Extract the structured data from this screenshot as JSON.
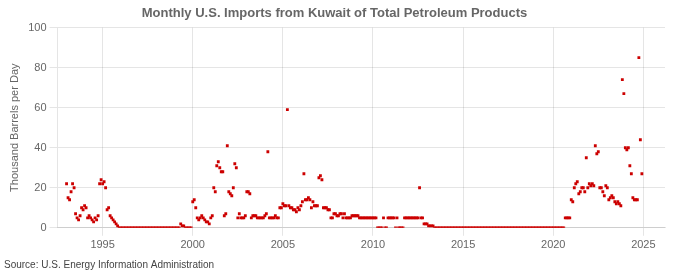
{
  "chart_data": {
    "type": "scatter",
    "title": "Monthly U.S. Imports from Kuwait of Total Petroleum Products",
    "ylabel": "Thousand Barrels per Day",
    "annotation": "Source: U.S. Energy Information Administration",
    "color": "#CC0000",
    "marker": "square",
    "grid": true,
    "xlim": [
      1992.5,
      2026.2
    ],
    "xticks": [
      1995,
      2000,
      2005,
      2010,
      2015,
      2020,
      2025
    ],
    "ylim": [
      0,
      100
    ],
    "yticks": [
      0,
      20,
      40,
      60,
      80,
      100
    ],
    "x": [
      1993.0,
      1993.083,
      1993.167,
      1993.25,
      1993.333,
      1993.417,
      1993.5,
      1993.583,
      1993.667,
      1993.75,
      1993.833,
      1993.917,
      1994.0,
      1994.083,
      1994.167,
      1994.25,
      1994.333,
      1994.417,
      1994.5,
      1994.583,
      1994.667,
      1994.75,
      1994.833,
      1994.917,
      1995.0,
      1995.083,
      1995.167,
      1995.25,
      1995.333,
      1995.417,
      1995.5,
      1995.583,
      1995.667,
      1995.75,
      1995.833,
      1995.917,
      1996.0,
      1996.083,
      1996.167,
      1996.25,
      1996.333,
      1996.417,
      1996.5,
      1996.583,
      1996.667,
      1996.75,
      1996.833,
      1996.917,
      1997.0,
      1997.083,
      1997.167,
      1997.25,
      1997.333,
      1997.417,
      1997.5,
      1997.583,
      1997.667,
      1997.75,
      1997.833,
      1997.917,
      1998.0,
      1998.083,
      1998.167,
      1998.25,
      1998.333,
      1998.417,
      1998.5,
      1998.583,
      1998.667,
      1998.75,
      1998.833,
      1998.917,
      1999.0,
      1999.083,
      1999.167,
      1999.25,
      1999.333,
      1999.417,
      1999.5,
      1999.583,
      1999.667,
      1999.75,
      1999.833,
      1999.917,
      2000.0,
      2000.083,
      2000.167,
      2000.25,
      2000.333,
      2000.417,
      2000.5,
      2000.583,
      2000.667,
      2000.75,
      2000.833,
      2000.917,
      2001.0,
      2001.083,
      2001.167,
      2001.25,
      2001.333,
      2001.417,
      2001.5,
      2001.583,
      2001.667,
      2001.75,
      2001.833,
      2001.917,
      2002.0,
      2002.083,
      2002.167,
      2002.25,
      2002.333,
      2002.417,
      2002.5,
      2002.583,
      2002.667,
      2002.75,
      2002.833,
      2002.917,
      2003.0,
      2003.083,
      2003.167,
      2003.25,
      2003.333,
      2003.417,
      2003.5,
      2003.583,
      2003.667,
      2003.75,
      2003.833,
      2003.917,
      2004.0,
      2004.083,
      2004.167,
      2004.25,
      2004.333,
      2004.417,
      2004.5,
      2004.583,
      2004.667,
      2004.75,
      2004.833,
      2004.917,
      2005.0,
      2005.083,
      2005.167,
      2005.25,
      2005.333,
      2005.417,
      2005.5,
      2005.583,
      2005.667,
      2005.75,
      2005.833,
      2005.917,
      2006.0,
      2006.083,
      2006.167,
      2006.25,
      2006.333,
      2006.417,
      2006.5,
      2006.583,
      2006.667,
      2006.75,
      2006.833,
      2006.917,
      2007.0,
      2007.083,
      2007.167,
      2007.25,
      2007.333,
      2007.417,
      2007.5,
      2007.583,
      2007.667,
      2007.75,
      2007.833,
      2007.917,
      2008.0,
      2008.083,
      2008.167,
      2008.25,
      2008.333,
      2008.417,
      2008.5,
      2008.583,
      2008.667,
      2008.75,
      2008.833,
      2008.917,
      2009.0,
      2009.083,
      2009.167,
      2009.25,
      2009.333,
      2009.417,
      2009.5,
      2009.583,
      2009.667,
      2009.75,
      2009.833,
      2009.917,
      2010.0,
      2010.083,
      2010.167,
      2010.25,
      2010.333,
      2010.417,
      2010.5,
      2010.583,
      2010.667,
      2010.75,
      2010.833,
      2010.917,
      2011.0,
      2011.083,
      2011.167,
      2011.25,
      2011.333,
      2011.417,
      2011.5,
      2011.583,
      2011.667,
      2011.75,
      2011.833,
      2011.917,
      2012.0,
      2012.083,
      2012.167,
      2012.25,
      2012.333,
      2012.417,
      2012.5,
      2012.583,
      2012.667,
      2012.75,
      2012.833,
      2012.917,
      2013.0,
      2013.083,
      2013.167,
      2013.25,
      2013.333,
      2013.417,
      2013.5,
      2013.583,
      2013.667,
      2013.75,
      2013.833,
      2013.917,
      2014.0,
      2014.083,
      2014.167,
      2014.25,
      2014.333,
      2014.417,
      2014.5,
      2014.583,
      2014.667,
      2014.75,
      2014.833,
      2014.917,
      2015.0,
      2015.083,
      2015.167,
      2015.25,
      2015.333,
      2015.417,
      2015.5,
      2015.583,
      2015.667,
      2015.75,
      2015.833,
      2015.917,
      2016.0,
      2016.083,
      2016.167,
      2016.25,
      2016.333,
      2016.417,
      2016.5,
      2016.583,
      2016.667,
      2016.75,
      2016.833,
      2016.917,
      2017.0,
      2017.083,
      2017.167,
      2017.25,
      2017.333,
      2017.417,
      2017.5,
      2017.583,
      2017.667,
      2017.75,
      2017.833,
      2017.917,
      2018.0,
      2018.083,
      2018.167,
      2018.25,
      2018.333,
      2018.417,
      2018.5,
      2018.583,
      2018.667,
      2018.75,
      2018.833,
      2018.917,
      2019.0,
      2019.083,
      2019.167,
      2019.25,
      2019.333,
      2019.417,
      2019.5,
      2019.583,
      2019.667,
      2019.75,
      2019.833,
      2019.917,
      2020.0,
      2020.083,
      2020.167,
      2020.25,
      2020.333,
      2020.417,
      2020.5,
      2020.583,
      2020.667,
      2020.75,
      2020.833,
      2020.917,
      2021.0,
      2021.083,
      2021.167,
      2021.25,
      2021.333,
      2021.417,
      2021.5,
      2021.583,
      2021.667,
      2021.75,
      2021.833,
      2021.917,
      2022.0,
      2022.083,
      2022.167,
      2022.25,
      2022.333,
      2022.417,
      2022.5,
      2022.583,
      2022.667,
      2022.75,
      2022.833,
      2022.917,
      2023.0,
      2023.083,
      2023.167,
      2023.25,
      2023.333,
      2023.417,
      2023.5,
      2023.583,
      2023.667,
      2023.75,
      2023.833,
      2023.917,
      2024.0,
      2024.083,
      2024.167,
      2024.25,
      2024.333,
      2024.417,
      2024.5,
      2024.583,
      2024.667,
      2024.75,
      2024.833,
      2024.917
    ],
    "values": [
      22,
      15,
      14,
      18,
      22,
      20,
      7,
      5,
      4,
      6,
      10,
      9,
      11,
      10,
      5,
      6,
      5,
      4,
      3,
      5,
      4,
      6,
      22,
      24,
      22,
      23,
      20,
      9,
      10,
      6,
      5,
      4,
      3,
      2,
      1,
      0,
      0,
      0,
      0,
      0,
      0,
      0,
      0,
      0,
      0,
      0,
      0,
      0,
      0,
      0,
      0,
      0,
      0,
      0,
      0,
      0,
      0,
      0,
      0,
      0,
      0,
      0,
      0,
      0,
      0,
      0,
      0,
      0,
      0,
      0,
      0,
      0,
      0,
      0,
      0,
      0,
      2,
      1,
      1,
      0,
      0,
      0,
      0,
      0,
      13,
      14,
      10,
      5,
      4,
      5,
      6,
      5,
      4,
      3,
      3,
      2,
      5,
      6,
      20,
      18,
      31,
      33,
      30,
      28,
      28,
      6,
      7,
      41,
      18,
      17,
      16,
      20,
      32,
      30,
      5,
      7,
      5,
      5,
      5,
      6,
      18,
      18,
      17,
      5,
      6,
      6,
      6,
      5,
      5,
      5,
      5,
      5,
      6,
      7,
      38,
      5,
      5,
      5,
      5,
      6,
      5,
      5,
      10,
      10,
      12,
      11,
      11,
      59,
      11,
      10,
      10,
      9,
      9,
      8,
      10,
      9,
      11,
      13,
      27,
      14,
      14,
      15,
      14,
      10,
      13,
      11,
      11,
      11,
      25,
      26,
      24,
      10,
      10,
      10,
      9,
      9,
      5,
      5,
      7,
      7,
      6,
      6,
      7,
      7,
      5,
      7,
      5,
      5,
      5,
      5,
      6,
      6,
      6,
      6,
      6,
      5,
      5,
      5,
      5,
      5,
      5,
      5,
      5,
      5,
      5,
      5,
      5,
      0,
      0,
      0,
      0,
      5,
      0,
      0,
      5,
      5,
      5,
      5,
      5,
      0,
      5,
      0,
      0,
      0,
      0,
      5,
      5,
      5,
      5,
      5,
      5,
      5,
      5,
      5,
      5,
      20,
      5,
      5,
      2,
      2,
      2,
      1,
      1,
      1,
      1,
      0,
      0,
      0,
      0,
      0,
      0,
      0,
      0,
      0,
      0,
      0,
      0,
      0,
      0,
      0,
      0,
      0,
      0,
      0,
      0,
      0,
      0,
      0,
      0,
      0,
      0,
      0,
      0,
      0,
      0,
      0,
      0,
      0,
      0,
      0,
      0,
      0,
      0,
      0,
      0,
      0,
      0,
      0,
      0,
      0,
      0,
      0,
      0,
      0,
      0,
      0,
      0,
      0,
      0,
      0,
      0,
      0,
      0,
      0,
      0,
      0,
      0,
      0,
      0,
      0,
      0,
      0,
      0,
      0,
      0,
      0,
      0,
      0,
      0,
      0,
      0,
      0,
      0,
      0,
      0,
      0,
      0,
      0,
      0,
      0,
      0,
      0,
      5,
      5,
      5,
      5,
      14,
      13,
      20,
      22,
      23,
      17,
      18,
      20,
      20,
      18,
      35,
      20,
      22,
      21,
      22,
      21,
      41,
      37,
      38,
      20,
      20,
      18,
      16,
      21,
      20,
      14,
      15,
      16,
      15,
      13,
      12,
      13,
      12,
      11,
      74,
      67,
      40,
      39,
      40,
      31,
      27,
      15,
      14,
      14,
      14,
      85,
      44,
      27
    ]
  }
}
